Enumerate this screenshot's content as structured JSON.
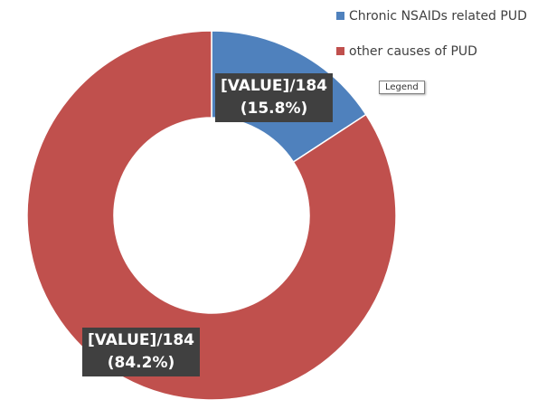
{
  "chart_data": {
    "type": "donut",
    "categories": [
      "Chronic NSAIDs related PUD",
      "other causes of PUD"
    ],
    "values": [
      15.8,
      84.2
    ],
    "value_labels": [
      "[VALUE]/184\n(15.8%)",
      "[VALUE]/184\n(84.2%)"
    ],
    "colors": [
      "#4f81bd",
      "#c0504d"
    ],
    "legend": "top-right",
    "annotations": [
      "Legend"
    ]
  }
}
